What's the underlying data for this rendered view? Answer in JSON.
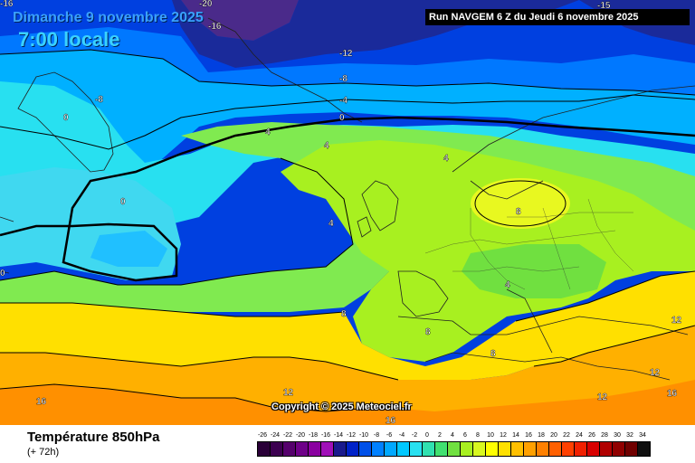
{
  "header": {
    "date_title": "Dimanche 9 novembre 2025",
    "time_title": "7:00 locale",
    "run_info": "Run NAVGEM 6 Z du Jeudi 6 novembre 2025"
  },
  "map": {
    "copyright": "Copyright © 2025 Meteociel.fr",
    "contour_labels": [
      {
        "value": "-20"
      },
      {
        "value": "-16"
      },
      {
        "value": "-16"
      },
      {
        "value": "-12"
      },
      {
        "value": "-8"
      },
      {
        "value": "-8"
      },
      {
        "value": "-4"
      },
      {
        "value": "0"
      },
      {
        "value": "0"
      },
      {
        "value": "0"
      },
      {
        "value": "0"
      },
      {
        "value": "4"
      },
      {
        "value": "4"
      },
      {
        "value": "4"
      },
      {
        "value": "4"
      },
      {
        "value": "4"
      },
      {
        "value": "8"
      },
      {
        "value": "8"
      },
      {
        "value": "8"
      },
      {
        "value": "8"
      },
      {
        "value": "12"
      },
      {
        "value": "12"
      },
      {
        "value": "12"
      },
      {
        "value": "12"
      },
      {
        "value": "16"
      },
      {
        "value": "16"
      },
      {
        "value": "16"
      },
      {
        "value": "-15"
      }
    ]
  },
  "footer": {
    "variable_title": "Température 850hPa",
    "lead_time": "(+ 72h)"
  },
  "legend": {
    "labels": [
      "-26",
      "-24",
      "-22",
      "-20",
      "-18",
      "-16",
      "-14",
      "-12",
      "-10",
      "-8",
      "-6",
      "-4",
      "-2",
      "0",
      "2",
      "4",
      "6",
      "8",
      "10",
      "12",
      "14",
      "16",
      "18",
      "20",
      "22",
      "24",
      "26",
      "28",
      "30",
      "32",
      "34"
    ],
    "colors": [
      "#2a0038",
      "#3c0050",
      "#55006c",
      "#6e0088",
      "#8a00a0",
      "#a010b8",
      "#1a1a8c",
      "#0022c8",
      "#0050e8",
      "#0080ff",
      "#00a8ff",
      "#00c8ff",
      "#28e0f0",
      "#30e0b0",
      "#40e070",
      "#70e040",
      "#a8f020",
      "#d8f820",
      "#ffff00",
      "#ffe000",
      "#ffc000",
      "#ffa000",
      "#ff8000",
      "#ff6000",
      "#ff4000",
      "#f02000",
      "#d80000",
      "#b00000",
      "#900000",
      "#700000",
      "#101010"
    ]
  }
}
